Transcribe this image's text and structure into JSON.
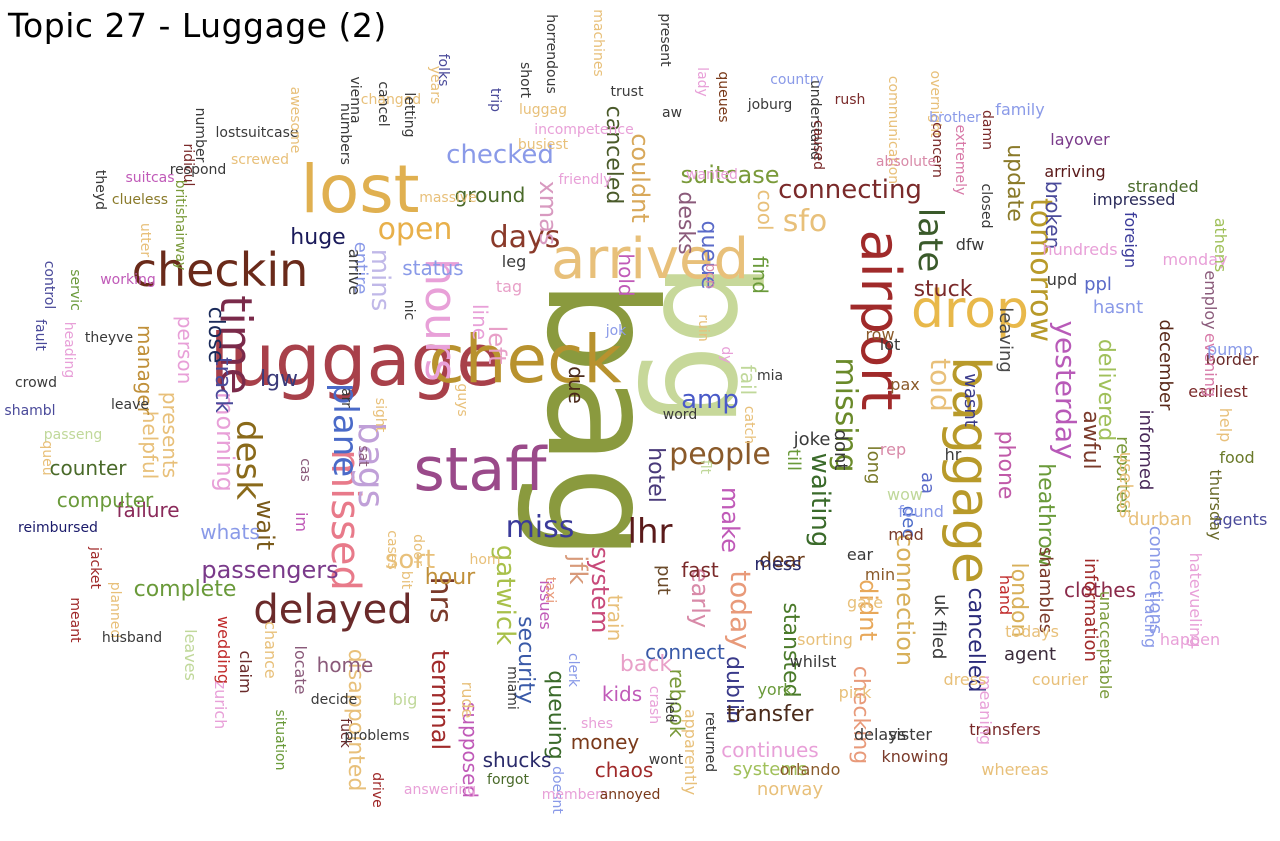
{
  "title": "Topic 27 - Luggage (2)",
  "words": [
    {
      "text": "bag",
      "color": "#8a9a3e"
    },
    {
      "text": "bg",
      "color": "#c7d89a"
    },
    {
      "text": "luggage",
      "color": "#a8404a"
    },
    {
      "text": "staff",
      "color": "#9a4a8a"
    },
    {
      "text": "lost",
      "color": "#e0b050"
    },
    {
      "text": "check",
      "color": "#b8922e"
    },
    {
      "text": "arrived",
      "color": "#e8c07a"
    },
    {
      "text": "airport",
      "color": "#a02a2a"
    },
    {
      "text": "baggage",
      "color": "#b89a2a"
    },
    {
      "text": "drop",
      "color": "#e8b84a"
    },
    {
      "text": "checkin",
      "color": "#6a2a1a"
    },
    {
      "text": "time",
      "color": "#7a2a4a"
    },
    {
      "text": "hours",
      "color": "#e8a0d8"
    },
    {
      "text": "delayed",
      "color": "#6a2a2a"
    },
    {
      "text": "missed",
      "color": "#e87a8a"
    },
    {
      "text": "bags",
      "color": "#c0a0d8"
    },
    {
      "text": "desk",
      "color": "#8a6a1a"
    },
    {
      "text": "plane",
      "color": "#4a6ac8"
    },
    {
      "text": "late",
      "color": "#3a5a2a"
    },
    {
      "text": "missing",
      "color": "#6a8a2a"
    },
    {
      "text": "people",
      "color": "#8a5a2a"
    },
    {
      "text": "miss",
      "color": "#3a3a9a"
    },
    {
      "text": "lhr",
      "color": "#5a1a1a"
    },
    {
      "text": "open",
      "color": "#e8b04a"
    },
    {
      "text": "days",
      "color": "#8a3a2a"
    },
    {
      "text": "sfo",
      "color": "#e8c07a"
    },
    {
      "text": "tomorrow",
      "color": "#b89a2a"
    },
    {
      "text": "yesterday",
      "color": "#b85ab8"
    },
    {
      "text": "waiting",
      "color": "#3a6a2a"
    },
    {
      "text": "told",
      "color": "#e8c07a"
    },
    {
      "text": "system",
      "color": "#c84a7a"
    },
    {
      "text": "gatwick",
      "color": "#a8c04a"
    },
    {
      "text": "connection",
      "color": "#d8b05a"
    },
    {
      "text": "hrs",
      "color": "#7a3a2a"
    },
    {
      "text": "mins",
      "color": "#c0b8e8"
    },
    {
      "text": "sort",
      "color": "#e8c07a"
    },
    {
      "text": "passengers",
      "color": "#7a3a8a"
    },
    {
      "text": "connecting",
      "color": "#7a2a2a"
    },
    {
      "text": "checked",
      "color": "#8a9ae8"
    },
    {
      "text": "amp",
      "color": "#4a5ac8"
    },
    {
      "text": "left",
      "color": "#e8a0c8"
    },
    {
      "text": "morning",
      "color": "#e8a0d8"
    },
    {
      "text": "wait",
      "color": "#7a5a1a"
    },
    {
      "text": "huge",
      "color": "#1a1a5a"
    },
    {
      "text": "xmas",
      "color": "#d89ac0"
    },
    {
      "text": "suitcase",
      "color": "#7a9a3a"
    },
    {
      "text": "queue",
      "color": "#5a6ac8"
    },
    {
      "text": "desks",
      "color": "#8a5a7a"
    },
    {
      "text": "couldnt",
      "color": "#d8a85a"
    },
    {
      "text": "canceled",
      "color": "#4a5a2a"
    },
    {
      "text": "update",
      "color": "#8a7a2a"
    },
    {
      "text": "broken",
      "color": "#4a4a9a"
    },
    {
      "text": "stuck",
      "color": "#7a2a2a"
    },
    {
      "text": "cancelled",
      "color": "#2a2a7a"
    },
    {
      "text": "today",
      "color": "#e89a7a"
    },
    {
      "text": "london",
      "color": "#d8b05a"
    },
    {
      "text": "phone",
      "color": "#c05aa8"
    },
    {
      "text": "delivered",
      "color": "#a0c05a"
    },
    {
      "text": "awful",
      "color": "#7a3a2a"
    },
    {
      "text": "hotel",
      "color": "#4a3a7a"
    },
    {
      "text": "make",
      "color": "#c05ab8"
    },
    {
      "text": "early",
      "color": "#d88aa8"
    },
    {
      "text": "security",
      "color": "#3a5aa8"
    },
    {
      "text": "queuing",
      "color": "#3a6a2a"
    },
    {
      "text": "jfk",
      "color": "#d89a7a"
    },
    {
      "text": "train",
      "color": "#e8c07a"
    },
    {
      "text": "hour",
      "color": "#c0903a"
    },
    {
      "text": "complete",
      "color": "#6a9a3a"
    },
    {
      "text": "dublin",
      "color": "#3a3a8a"
    },
    {
      "text": "stansted",
      "color": "#4a7a2a"
    },
    {
      "text": "didnt",
      "color": "#e8a85a"
    },
    {
      "text": "checking",
      "color": "#e89a7a"
    },
    {
      "text": "transfer",
      "color": "#4a2a1a"
    },
    {
      "text": "terminal",
      "color": "#a02a2a"
    },
    {
      "text": "disappointed",
      "color": "#e8c07a"
    },
    {
      "text": "home",
      "color": "#8a5a7a"
    },
    {
      "text": "track",
      "color": "#4a4a9a"
    },
    {
      "text": "counter",
      "color": "#4a6a2a"
    },
    {
      "text": "helpful",
      "color": "#e8c07a"
    },
    {
      "text": "presents",
      "color": "#e8c07a"
    },
    {
      "text": "failure",
      "color": "#8a2a5a"
    },
    {
      "text": "computer",
      "color": "#6a9a3a"
    },
    {
      "text": "whats",
      "color": "#8a9ae8"
    },
    {
      "text": "manager",
      "color": "#c0903a"
    },
    {
      "text": "person",
      "color": "#e8a0d8"
    },
    {
      "text": "close",
      "color": "#1a2a5a"
    },
    {
      "text": "lgw",
      "color": "#3a3a7a"
    },
    {
      "text": "clothes",
      "color": "#8a2a4a"
    },
    {
      "text": "heathrow",
      "color": "#6a9a3a"
    },
    {
      "text": "reported",
      "color": "#7a9a3a"
    },
    {
      "text": "informed",
      "color": "#4a2a5a"
    },
    {
      "text": "december",
      "color": "#5a2a1a"
    },
    {
      "text": "fail",
      "color": "#c0d89a"
    },
    {
      "text": "find",
      "color": "#6a9a3a"
    },
    {
      "text": "cool",
      "color": "#e8c07a"
    },
    {
      "text": "hold",
      "color": "#c05ab8"
    },
    {
      "text": "due",
      "color": "#4a2a1a"
    },
    {
      "text": "line",
      "color": "#e8a0d8"
    },
    {
      "text": "status",
      "color": "#8a9ae8"
    },
    {
      "text": "entire",
      "color": "#8a9ae8"
    },
    {
      "text": "ground",
      "color": "#4a6a2a"
    },
    {
      "text": "rebook",
      "color": "#7a9a3a"
    },
    {
      "text": "connect",
      "color": "#3a5aa8"
    },
    {
      "text": "back",
      "color": "#e8a0c8"
    },
    {
      "text": "kids",
      "color": "#c05ab8"
    },
    {
      "text": "money",
      "color": "#7a3a1a"
    },
    {
      "text": "chaos",
      "color": "#a02a2a"
    },
    {
      "text": "shucks",
      "color": "#2a2a6a"
    },
    {
      "text": "supposed",
      "color": "#c05ab8"
    },
    {
      "text": "continues",
      "color": "#e8a0d8"
    },
    {
      "text": "systems",
      "color": "#a0c05a"
    },
    {
      "text": "norway",
      "color": "#e8c07a"
    },
    {
      "text": "fast",
      "color": "#7a2a2a"
    },
    {
      "text": "dear",
      "color": "#6a3a1a"
    },
    {
      "text": "put",
      "color": "#6a4a2a"
    },
    {
      "text": "mess",
      "color": "#2a2a6a"
    },
    {
      "text": "filed",
      "color": "#3a3a3a"
    },
    {
      "text": "uk",
      "color": "#3a3a3a"
    },
    {
      "text": "agent",
      "color": "#3a2a3a"
    },
    {
      "text": "shambles",
      "color": "#7a3a2a"
    },
    {
      "text": "information",
      "color": "#a02a2a"
    },
    {
      "text": "connections",
      "color": "#8a9ae8"
    },
    {
      "text": "durban",
      "color": "#e8c07a"
    },
    {
      "text": "useless",
      "color": "#e8c07a"
    },
    {
      "text": "leaving",
      "color": "#4a4a4a"
    },
    {
      "text": "hasnt",
      "color": "#8a9ae8"
    },
    {
      "text": "ppl",
      "color": "#5a6ac8"
    },
    {
      "text": "wasnt",
      "color": "#3a3a8a"
    },
    {
      "text": "dont",
      "color": "#3a3a3a"
    },
    {
      "text": "joke",
      "color": "#3a3a3a"
    },
    {
      "text": "till",
      "color": "#6a9a3a"
    },
    {
      "text": "long",
      "color": "#7a7a2a"
    },
    {
      "text": "dec",
      "color": "#4a6ac8"
    },
    {
      "text": "aa",
      "color": "#5a6ac8"
    },
    {
      "text": "food",
      "color": "#6a7a2a"
    },
    {
      "text": "agents",
      "color": "#4a4a9a"
    },
    {
      "text": "border",
      "color": "#6a2a2a"
    },
    {
      "text": "earliest",
      "color": "#7a2a2a"
    },
    {
      "text": "help",
      "color": "#e8c07a"
    },
    {
      "text": "thursday",
      "color": "#6a6a2a"
    },
    {
      "text": "evening",
      "color": "#d87aa8"
    },
    {
      "text": "pump",
      "color": "#8a9ae8"
    },
    {
      "text": "monday",
      "color": "#e8a0d8"
    },
    {
      "text": "employ",
      "color": "#8a5a7a"
    },
    {
      "text": "athens",
      "color": "#a0c05a"
    },
    {
      "text": "foreign",
      "color": "#3a3a9a"
    },
    {
      "text": "impressed",
      "color": "#2a2a5a"
    },
    {
      "text": "stranded",
      "color": "#4a6a2a"
    },
    {
      "text": "arriving",
      "color": "#5a1a1a"
    },
    {
      "text": "layover",
      "color": "#7a3a8a"
    },
    {
      "text": "family",
      "color": "#8a9ae8"
    },
    {
      "text": "hundreds",
      "color": "#e8a0d8"
    },
    {
      "text": "upd",
      "color": "#3a3a3a"
    },
    {
      "text": "dfw",
      "color": "#3a3a3a"
    },
    {
      "text": "lot",
      "color": "#3a3a3a"
    },
    {
      "text": "pax",
      "color": "#8a5a2a"
    },
    {
      "text": "row",
      "color": "#8a5a2a"
    },
    {
      "text": "hr",
      "color": "#3a3a3a"
    },
    {
      "text": "rep",
      "color": "#d88aa8"
    },
    {
      "text": "wow",
      "color": "#c0d89a"
    },
    {
      "text": "found",
      "color": "#8a9ae8"
    },
    {
      "text": "mad",
      "color": "#7a3a2a"
    },
    {
      "text": "ear",
      "color": "#3a3a3a"
    },
    {
      "text": "min",
      "color": "#8a5a2a"
    },
    {
      "text": "gate",
      "color": "#e8c07a"
    },
    {
      "text": "sorting",
      "color": "#e8c07a"
    },
    {
      "text": "whilst",
      "color": "#3a3a3a"
    },
    {
      "text": "pick",
      "color": "#e8c07a"
    },
    {
      "text": "york",
      "color": "#6a9a3a"
    },
    {
      "text": "orlando",
      "color": "#8a5a2a"
    },
    {
      "text": "delays",
      "color": "#3a3a3a"
    },
    {
      "text": "sister",
      "color": "#3a3a3a"
    },
    {
      "text": "knowing",
      "color": "#7a3a2a"
    },
    {
      "text": "whereas",
      "color": "#e8c07a"
    },
    {
      "text": "transfers",
      "color": "#7a2a2a"
    },
    {
      "text": "meaning",
      "color": "#e8a0d8"
    },
    {
      "text": "dress",
      "color": "#e8c07a"
    },
    {
      "text": "courier",
      "color": "#e8c07a"
    },
    {
      "text": "todays",
      "color": "#e8c07a"
    },
    {
      "text": "hand",
      "color": "#c02a2a"
    },
    {
      "text": "tracing",
      "color": "#8a9ae8"
    },
    {
      "text": "unacceptable",
      "color": "#7a9a3a"
    },
    {
      "text": "hatevueling",
      "color": "#e8a0d8"
    },
    {
      "text": "happen",
      "color": "#e8a0d8"
    },
    {
      "text": "reimbursed",
      "color": "#1a1a6a"
    },
    {
      "text": "jacket",
      "color": "#a02a2a"
    },
    {
      "text": "meant",
      "color": "#a02a2a"
    },
    {
      "text": "planned",
      "color": "#e8c07a"
    },
    {
      "text": "husband",
      "color": "#3a3a3a"
    },
    {
      "text": "door",
      "color": "#e8c07a"
    },
    {
      "text": "bit",
      "color": "#e8c07a"
    },
    {
      "text": "cases",
      "color": "#e8c07a"
    },
    {
      "text": "wedding",
      "color": "#c02a2a"
    },
    {
      "text": "leaves",
      "color": "#c0d89a"
    },
    {
      "text": "zurich",
      "color": "#e8a0d8"
    },
    {
      "text": "claim",
      "color": "#6a2a2a"
    },
    {
      "text": "chance",
      "color": "#e8c07a"
    },
    {
      "text": "locate",
      "color": "#8a5a7a"
    },
    {
      "text": "decide",
      "color": "#3a3a3a"
    },
    {
      "text": "situation",
      "color": "#6a9a3a"
    },
    {
      "text": "fuck",
      "color": "#6a2a2a"
    },
    {
      "text": "problems",
      "color": "#3a3a3a"
    },
    {
      "text": "drive",
      "color": "#a02a2a"
    },
    {
      "text": "answering",
      "color": "#e8a0d8"
    },
    {
      "text": "doesnt",
      "color": "#8a9ae8"
    },
    {
      "text": "members",
      "color": "#e8a0d8"
    },
    {
      "text": "forgot",
      "color": "#4a6a2a"
    },
    {
      "text": "annoyed",
      "color": "#7a3a1a"
    },
    {
      "text": "apparently",
      "color": "#e8c07a"
    },
    {
      "text": "wont",
      "color": "#3a3a3a"
    },
    {
      "text": "returned",
      "color": "#3a3a3a"
    },
    {
      "text": "lied",
      "color": "#3a3a3a"
    },
    {
      "text": "crash",
      "color": "#e8a0d8"
    },
    {
      "text": "shes",
      "color": "#e8a0d8"
    },
    {
      "text": "clerk",
      "color": "#8a9ae8"
    },
    {
      "text": "miami",
      "color": "#3a3a3a"
    },
    {
      "text": "rude",
      "color": "#e8c07a"
    },
    {
      "text": "big",
      "color": "#c0d89a"
    },
    {
      "text": "issues",
      "color": "#c05ab8"
    },
    {
      "text": "taxi",
      "color": "#e89a7a"
    },
    {
      "text": "hom",
      "color": "#e8c07a"
    },
    {
      "text": "im",
      "color": "#c05ab8"
    },
    {
      "text": "cas",
      "color": "#8a5a7a"
    },
    {
      "text": "sat",
      "color": "#8a5a7a"
    },
    {
      "text": "arr",
      "color": "#3a3a3a"
    },
    {
      "text": "guys",
      "color": "#e8c07a"
    },
    {
      "text": "sight",
      "color": "#e8c07a"
    },
    {
      "text": "nic",
      "color": "#3a3a3a"
    },
    {
      "text": "arrive",
      "color": "#3a3a3a"
    },
    {
      "text": "leg",
      "color": "#3a3a3a"
    },
    {
      "text": "tag",
      "color": "#e8a0c8"
    },
    {
      "text": "jok",
      "color": "#8a9ae8"
    },
    {
      "text": "word",
      "color": "#3a3a3a"
    },
    {
      "text": "flt",
      "color": "#c0d89a"
    },
    {
      "text": "catch",
      "color": "#e8c07a"
    },
    {
      "text": "mia",
      "color": "#3a3a3a"
    },
    {
      "text": "dy",
      "color": "#e8a0d8"
    },
    {
      "text": "ruin",
      "color": "#e8c07a"
    },
    {
      "text": "bcn",
      "color": "#d88aa8"
    },
    {
      "text": "leave",
      "color": "#3a3a3a"
    },
    {
      "text": "passeng",
      "color": "#c0d89a"
    },
    {
      "text": "shambl",
      "color": "#4a4a9a"
    },
    {
      "text": "crowd",
      "color": "#3a3a3a"
    },
    {
      "text": "heading",
      "color": "#e8a0d8"
    },
    {
      "text": "fault",
      "color": "#4a4a9a"
    },
    {
      "text": "theyve",
      "color": "#3a3a3a"
    },
    {
      "text": "servic",
      "color": "#6a9a3a"
    },
    {
      "text": "control",
      "color": "#4a4a9a"
    },
    {
      "text": "theyd",
      "color": "#3a3a3a"
    },
    {
      "text": "clueless",
      "color": "#8a7a2a"
    },
    {
      "text": "suitcas",
      "color": "#c05ab8"
    },
    {
      "text": "utter",
      "color": "#e8c07a"
    },
    {
      "text": "britishairway",
      "color": "#7a9a3a"
    },
    {
      "text": "ridicul",
      "color": "#7a2a2a"
    },
    {
      "text": "respond",
      "color": "#3a3a3a"
    },
    {
      "text": "working",
      "color": "#c05ab8"
    },
    {
      "text": "queu",
      "color": "#e8c07a"
    },
    {
      "text": "screwed",
      "color": "#e8c07a"
    },
    {
      "text": "number",
      "color": "#3a3a3a"
    },
    {
      "text": "lostsuitcase",
      "color": "#3a3a3a"
    },
    {
      "text": "awesome",
      "color": "#e8c07a"
    },
    {
      "text": "vienna",
      "color": "#3a3a3a"
    },
    {
      "text": "numbers",
      "color": "#3a3a3a"
    },
    {
      "text": "cancel",
      "color": "#3a3a3a"
    },
    {
      "text": "changed",
      "color": "#e8c07a"
    },
    {
      "text": "letting",
      "color": "#3a3a3a"
    },
    {
      "text": "folks",
      "color": "#4a4a9a"
    },
    {
      "text": "years",
      "color": "#e8c07a"
    },
    {
      "text": "massive",
      "color": "#e8c07a"
    },
    {
      "text": "trip",
      "color": "#4a4a9a"
    },
    {
      "text": "short",
      "color": "#3a3a3a"
    },
    {
      "text": "horrendous",
      "color": "#3a3a3a"
    },
    {
      "text": "luggag",
      "color": "#e8c07a"
    },
    {
      "text": "busiest",
      "color": "#e8c07a"
    },
    {
      "text": "friendly",
      "color": "#e8a0d8"
    },
    {
      "text": "machines",
      "color": "#e8c07a"
    },
    {
      "text": "trust",
      "color": "#3a3a3a"
    },
    {
      "text": "aw",
      "color": "#3a3a3a"
    },
    {
      "text": "incompetence",
      "color": "#e8a0d8"
    },
    {
      "text": "wanted",
      "color": "#e8a0d8"
    },
    {
      "text": "present",
      "color": "#3a3a3a"
    },
    {
      "text": "lady",
      "color": "#e8a0d8"
    },
    {
      "text": "queues",
      "color": "#7a3a1a"
    },
    {
      "text": "joburg",
      "color": "#3a3a3a"
    },
    {
      "text": "country",
      "color": "#8a9ae8"
    },
    {
      "text": "understand",
      "color": "#3a3a3a"
    },
    {
      "text": "caused",
      "color": "#7a2a2a"
    },
    {
      "text": "rush",
      "color": "#7a2a2a"
    },
    {
      "text": "communication",
      "color": "#e8c07a"
    },
    {
      "text": "overnight",
      "color": "#e8c07a"
    },
    {
      "text": "brother",
      "color": "#8a9ae8"
    },
    {
      "text": "concern",
      "color": "#7a2a2a"
    },
    {
      "text": "extremely",
      "color": "#d87aa8"
    },
    {
      "text": "damn",
      "color": "#7a2a2a"
    },
    {
      "text": "absolute",
      "color": "#d88aa8"
    },
    {
      "text": "closed",
      "color": "#3a3a3a"
    },
    {
      "text": "helping",
      "color": "#d87aa8"
    },
    {
      "text": "linz",
      "color": "#8a9ae8"
    },
    {
      "text": "pm",
      "color": "#4a6a2a"
    }
  ]
}
